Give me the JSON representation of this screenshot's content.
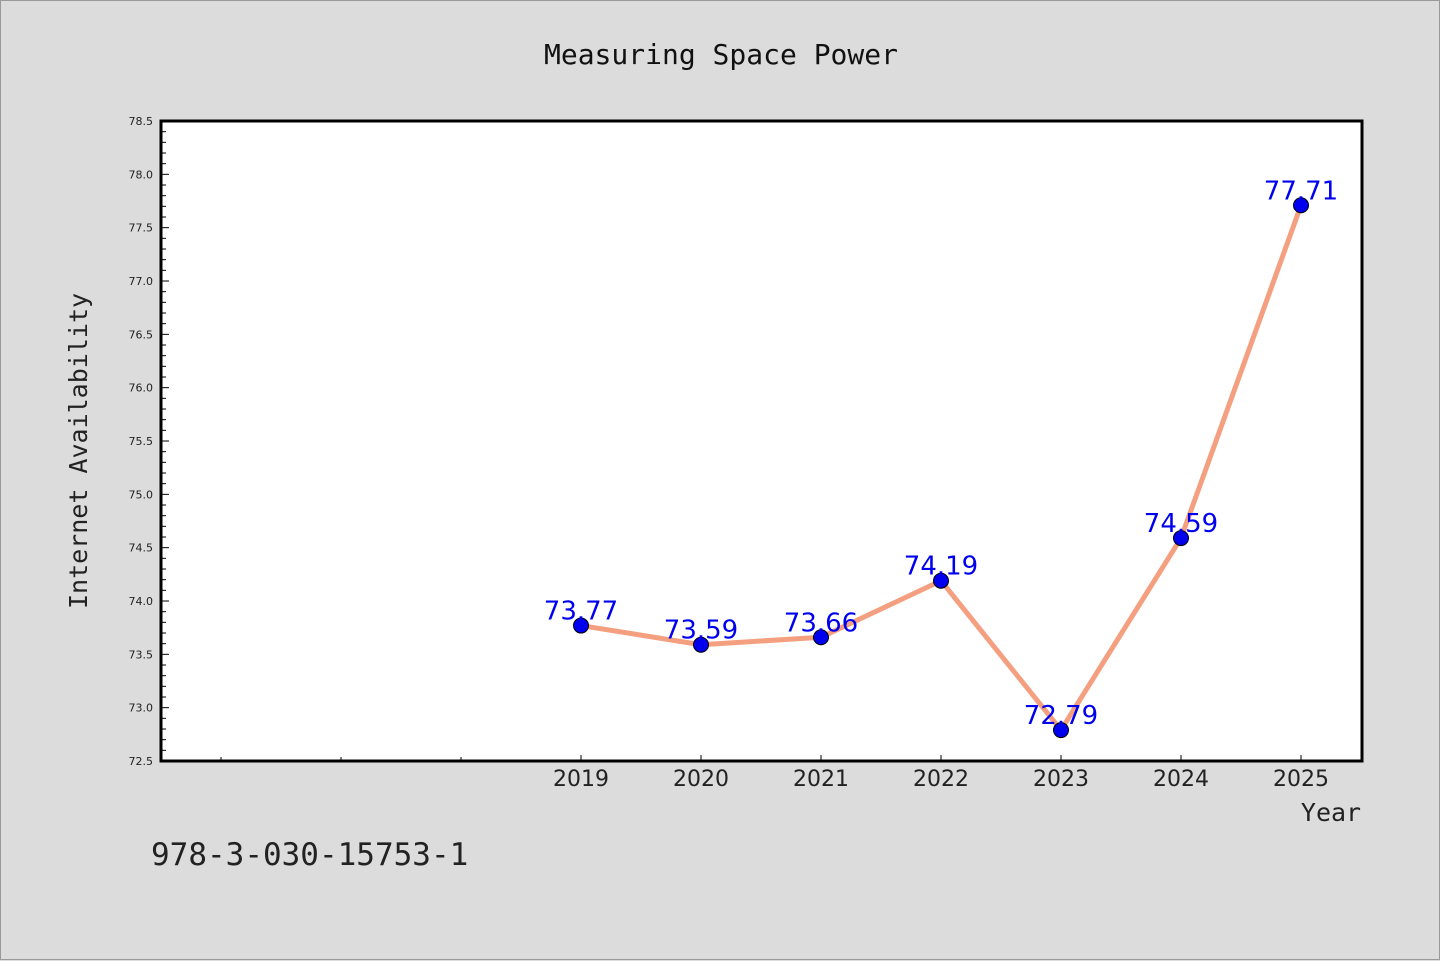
{
  "chart_data": {
    "type": "line",
    "title": "Measuring Space Power",
    "xlabel": "Year",
    "ylabel": "Internet Availability",
    "x": [
      "2019",
      "2020",
      "2021",
      "2022",
      "2023",
      "2024",
      "2025"
    ],
    "series": [
      {
        "values": [
          73.77,
          73.59,
          73.66,
          74.19,
          72.79,
          74.59,
          77.71
        ],
        "labels": [
          "73.77",
          "73.59",
          "73.66",
          "74.19",
          "72.79",
          "74.59",
          "77.71"
        ]
      }
    ],
    "ylim": [
      72.5,
      78.5
    ],
    "yticks": [
      "72.5",
      "73.0",
      "73.5",
      "74.0",
      "74.5",
      "75.0",
      "75.5",
      "76.0",
      "76.5",
      "77.0",
      "77.5",
      "78.0",
      "78.5"
    ],
    "grid": false,
    "line_color": "#f4a080",
    "marker_color": "#0000ee",
    "label_color": "#0000ee"
  },
  "footer": {
    "text": "978-3-030-15753-1"
  }
}
